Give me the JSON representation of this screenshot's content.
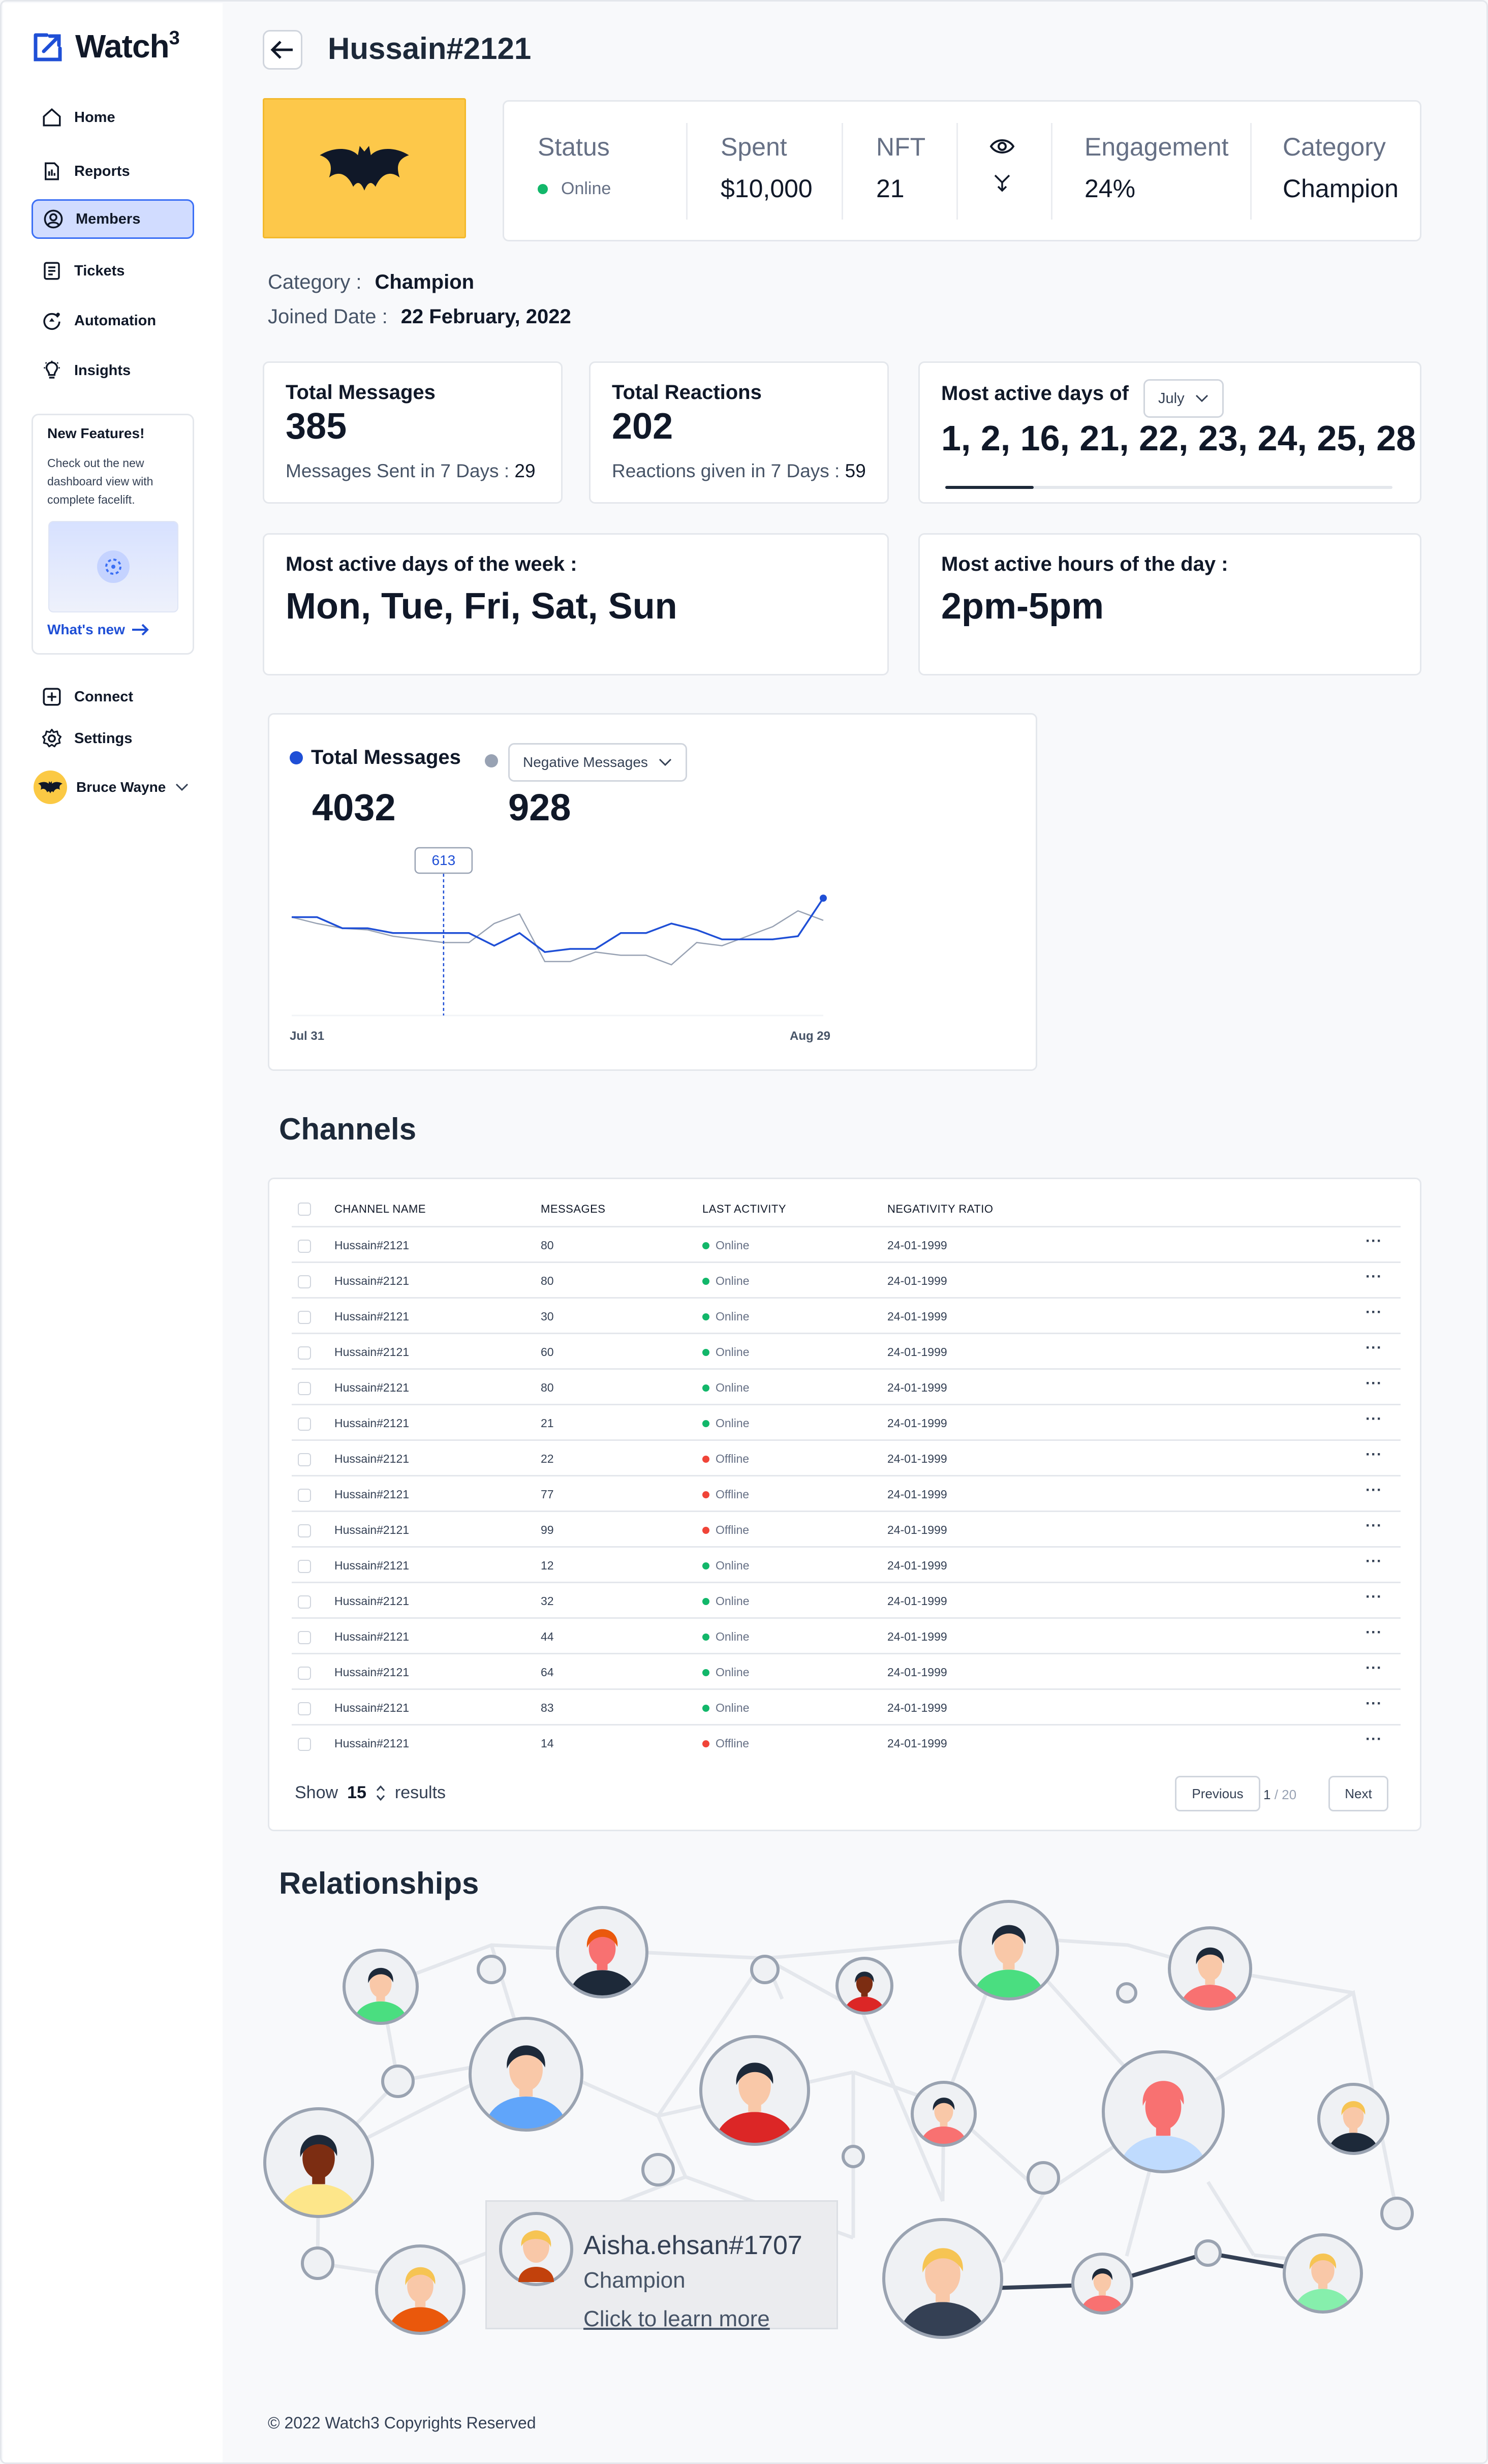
{
  "app": {
    "name": "Watch",
    "name_sup": "3"
  },
  "sidebar": {
    "items": [
      {
        "label": "Home",
        "icon": "home-icon"
      },
      {
        "label": "Reports",
        "icon": "reports-icon"
      },
      {
        "label": "Members",
        "icon": "members-icon",
        "active": true
      },
      {
        "label": "Tickets",
        "icon": "tickets-icon"
      },
      {
        "label": "Automation",
        "icon": "automation-icon"
      },
      {
        "label": "Insights",
        "icon": "insights-icon"
      }
    ],
    "promo": {
      "title": "New Features!",
      "text": "Check out the new dashboard view with complete facelift.",
      "link": "What's new"
    },
    "bottom": [
      {
        "label": "Connect",
        "icon": "plus-square-icon"
      },
      {
        "label": "Settings",
        "icon": "gear-icon"
      }
    ],
    "user": "Bruce Wayne"
  },
  "header": {
    "title": "Hussain#2121"
  },
  "stats": {
    "status_label": "Status",
    "status_value": "Online",
    "spent_label": "Spent",
    "spent_value": "$10,000",
    "nft_label": "NFT",
    "nft_value": "21",
    "engagement_label": "Engagement",
    "engagement_value": "24%",
    "category_label": "Category",
    "category_value": "Champion"
  },
  "meta": {
    "category_label": "Category :",
    "category_value": "Champion",
    "joined_label": "Joined Date :",
    "joined_value": "22 February, 2022"
  },
  "cards": {
    "total_messages": {
      "title": "Total Messages",
      "value": "385",
      "sub_label": "Messages Sent in 7 Days :",
      "sub_value": "29"
    },
    "total_reactions": {
      "title": "Total Reactions",
      "value": "202",
      "sub_label": "Reactions given in 7 Days :",
      "sub_value": "59"
    },
    "active_days_month": {
      "title": "Most active days of",
      "month": "July",
      "value": "1, 2, 16, 21, 22, 23, 24, 25, 28"
    },
    "active_days_week": {
      "title": "Most active days of the week :",
      "value": "Mon, Tue, Fri, Sat, Sun"
    },
    "active_hours": {
      "title": "Most active hours of the day :",
      "value": "2pm-5pm"
    }
  },
  "chart": {
    "series1_label": "Total Messages",
    "series1_total": "4032",
    "series2_dropdown": "Negative Messages",
    "series2_total": "928",
    "tooltip_value": "613",
    "x_start": "Jul 31",
    "x_end": "Aug 29"
  },
  "chart_data": {
    "type": "line",
    "series": [
      {
        "name": "Total Messages",
        "color": "#1f4fd6",
        "values": [
          62,
          62,
          55,
          55,
          52,
          52,
          52,
          52,
          44,
          52,
          40,
          42,
          42,
          52,
          52,
          58,
          54,
          48,
          48,
          48,
          50,
          74
        ]
      },
      {
        "name": "Negative Messages",
        "color": "#98a2b3",
        "values": [
          62,
          58,
          55,
          54,
          50,
          48,
          46,
          46,
          58,
          64,
          34,
          34,
          40,
          38,
          38,
          32,
          46,
          44,
          50,
          56,
          66,
          60
        ]
      }
    ],
    "ylim": [
      0,
      100
    ]
  },
  "channels": {
    "title": "Channels",
    "columns": [
      "CHANNEL NAME",
      "MESSAGES",
      "LAST ACTIVITY",
      "NEGATIVITY RATIO"
    ],
    "rows": [
      {
        "name": "Hussain#2121",
        "messages": "80",
        "activity": "Online",
        "ratio": "24-01-1999"
      },
      {
        "name": "Hussain#2121",
        "messages": "80",
        "activity": "Online",
        "ratio": "24-01-1999"
      },
      {
        "name": "Hussain#2121",
        "messages": "30",
        "activity": "Online",
        "ratio": "24-01-1999"
      },
      {
        "name": "Hussain#2121",
        "messages": "60",
        "activity": "Online",
        "ratio": "24-01-1999"
      },
      {
        "name": "Hussain#2121",
        "messages": "80",
        "activity": "Online",
        "ratio": "24-01-1999"
      },
      {
        "name": "Hussain#2121",
        "messages": "21",
        "activity": "Online",
        "ratio": "24-01-1999"
      },
      {
        "name": "Hussain#2121",
        "messages": "22",
        "activity": "Offline",
        "ratio": "24-01-1999"
      },
      {
        "name": "Hussain#2121",
        "messages": "77",
        "activity": "Offline",
        "ratio": "24-01-1999"
      },
      {
        "name": "Hussain#2121",
        "messages": "99",
        "activity": "Offline",
        "ratio": "24-01-1999"
      },
      {
        "name": "Hussain#2121",
        "messages": "12",
        "activity": "Online",
        "ratio": "24-01-1999"
      },
      {
        "name": "Hussain#2121",
        "messages": "32",
        "activity": "Online",
        "ratio": "24-01-1999"
      },
      {
        "name": "Hussain#2121",
        "messages": "44",
        "activity": "Online",
        "ratio": "24-01-1999"
      },
      {
        "name": "Hussain#2121",
        "messages": "64",
        "activity": "Online",
        "ratio": "24-01-1999"
      },
      {
        "name": "Hussain#2121",
        "messages": "83",
        "activity": "Online",
        "ratio": "24-01-1999"
      },
      {
        "name": "Hussain#2121",
        "messages": "14",
        "activity": "Offline",
        "ratio": "24-01-1999"
      }
    ],
    "show_label": "Show",
    "show_value": "15",
    "results_label": "results",
    "prev_label": "Previous",
    "next_label": "Next",
    "page_current": "1",
    "page_total": "/ 20"
  },
  "relationships": {
    "title": "Relationships",
    "tooltip": {
      "name": "Aisha.ehsan#1707",
      "role": "Champion",
      "link": "Click to learn more"
    }
  },
  "footer": {
    "text": "© 2022 Watch3 Copyrights Reserved"
  },
  "colors": {
    "accent": "#1f4fd6",
    "online": "#12b76a",
    "offline": "#f04438",
    "brand_yellow": "#fdc84a"
  }
}
